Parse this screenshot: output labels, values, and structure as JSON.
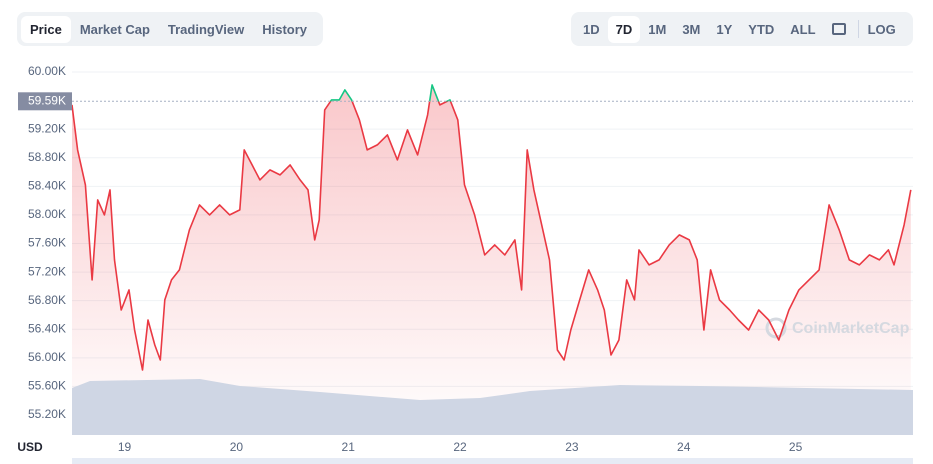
{
  "tabs": {
    "items": [
      "Price",
      "Market Cap",
      "TradingView",
      "History"
    ],
    "active": 0
  },
  "ranges": {
    "items": [
      "1D",
      "7D",
      "1M",
      "3M",
      "1Y",
      "YTD",
      "ALL"
    ],
    "active": 1,
    "log": "LOG"
  },
  "chart_data": {
    "type": "line",
    "currency": "USD",
    "watermark": "CoinMarketCap",
    "x": [
      18.53,
      18.58,
      18.65,
      18.71,
      18.76,
      18.82,
      18.87,
      18.91,
      18.97,
      19.04,
      19.09,
      19.16,
      19.21,
      19.27,
      19.32,
      19.36,
      19.42,
      19.49,
      19.58,
      19.67,
      19.76,
      19.85,
      19.94,
      20.03,
      20.07,
      20.14,
      20.21,
      20.3,
      20.39,
      20.48,
      20.57,
      20.64,
      20.7,
      20.74,
      20.79,
      20.85,
      20.92,
      20.97,
      21.03,
      21.1,
      21.17,
      21.26,
      21.35,
      21.44,
      21.53,
      21.62,
      21.71,
      21.75,
      21.82,
      21.91,
      21.98,
      22.04,
      22.13,
      22.22,
      22.31,
      22.4,
      22.49,
      22.55,
      22.6,
      22.66,
      22.73,
      22.8,
      22.87,
      22.93,
      22.99,
      23.07,
      23.15,
      23.23,
      23.29,
      23.35,
      23.42,
      23.49,
      23.56,
      23.6,
      23.69,
      23.78,
      23.87,
      23.96,
      24.05,
      24.12,
      24.18,
      24.24,
      24.32,
      24.41,
      24.49,
      24.58,
      24.67,
      24.76,
      24.85,
      24.94,
      25.03,
      25.12,
      25.21,
      25.3,
      25.39,
      25.48,
      25.57,
      25.66,
      25.75,
      25.83,
      25.88,
      25.97,
      26.03
    ],
    "series": [
      {
        "color": "#ea3943",
        "above_color": "#16c784",
        "values": [
          59540,
          58910,
          58420,
          57090,
          58210,
          58000,
          58350,
          57370,
          56670,
          56950,
          56390,
          55830,
          56530,
          56180,
          55970,
          56810,
          57090,
          57230,
          57790,
          58140,
          58000,
          58140,
          58000,
          58070,
          58910,
          58700,
          58490,
          58630,
          58560,
          58700,
          58490,
          58350,
          57650,
          57930,
          59470,
          59610,
          59610,
          59750,
          59610,
          59330,
          58910,
          58980,
          59120,
          58770,
          59190,
          58840,
          59400,
          59820,
          59540,
          59610,
          59330,
          58420,
          58000,
          57440,
          57580,
          57440,
          57650,
          56950,
          58910,
          58350,
          57860,
          57370,
          56110,
          55970,
          56390,
          56810,
          57230,
          56950,
          56670,
          56040,
          56250,
          57090,
          56810,
          57510,
          57300,
          57370,
          57580,
          57720,
          57650,
          57370,
          56390,
          57230,
          56810,
          56670,
          56530,
          56390,
          56670,
          56530,
          56250,
          56670,
          56950,
          57090,
          57230,
          58140,
          57790,
          57370,
          57300,
          57440,
          57370,
          57510,
          57300,
          57860,
          58350
        ]
      }
    ],
    "reference": {
      "value": 59590,
      "label": "59.59K"
    },
    "xlim": [
      18.53,
      26.05
    ],
    "ylim": [
      54920,
      60140
    ],
    "xticks": [
      19,
      20,
      21,
      22,
      23,
      24,
      25
    ],
    "yticks": [
      {
        "value": 55200,
        "label": "55.20K"
      },
      {
        "value": 55600,
        "label": "55.60K"
      },
      {
        "value": 56000,
        "label": "56.00K"
      },
      {
        "value": 56400,
        "label": "56.40K"
      },
      {
        "value": 56800,
        "label": "56.80K"
      },
      {
        "value": 57200,
        "label": "57.20K"
      },
      {
        "value": 57600,
        "label": "57.60K"
      },
      {
        "value": 58000,
        "label": "58.00K"
      },
      {
        "value": 58400,
        "label": "58.40K"
      },
      {
        "value": 58800,
        "label": "58.80K"
      },
      {
        "value": 59200,
        "label": "59.20K"
      },
      {
        "value": 60000,
        "label": "60.00K"
      }
    ],
    "grid": true
  }
}
